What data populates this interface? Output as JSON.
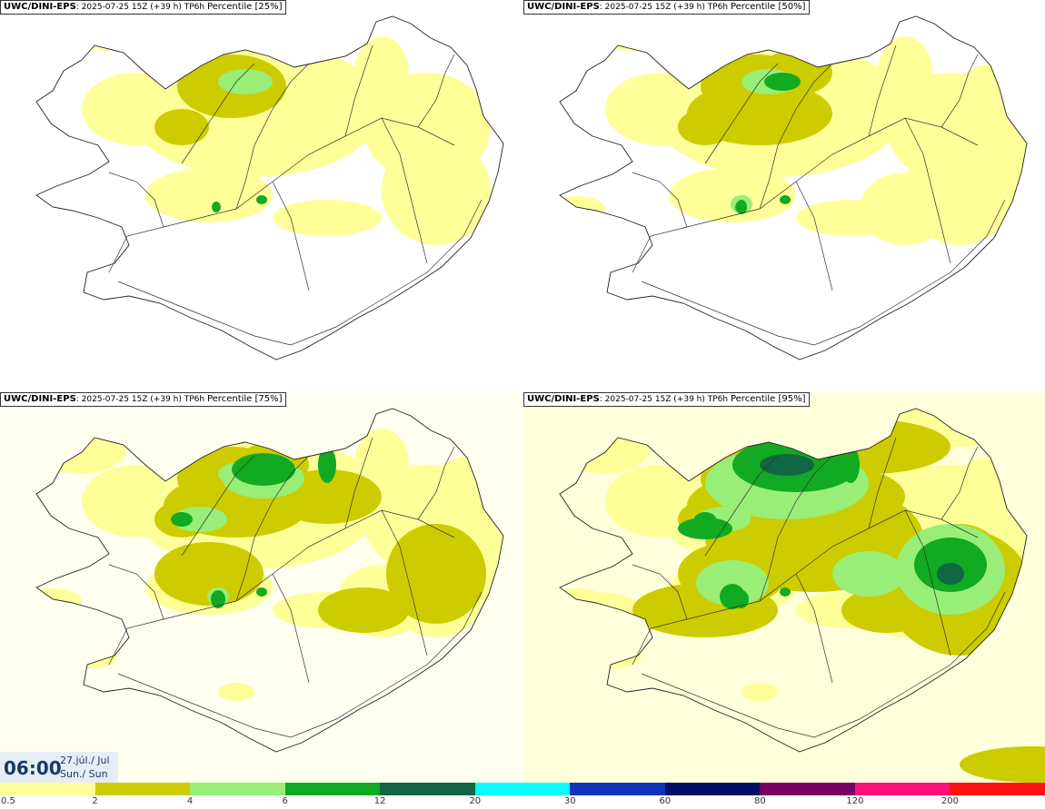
{
  "panels": [
    {
      "source": "UWC/DINI-EPS",
      "info": ": 2025-07-25 15Z (+39 h) TP6h",
      "percentile": "Percentile [25%]",
      "level": 0
    },
    {
      "source": "UWC/DINI-EPS",
      "info": ": 2025-07-25 15Z (+39 h) TP6h",
      "percentile": "Percentile [50%]",
      "level": 1
    },
    {
      "source": "UWC/DINI-EPS",
      "info": ": 2025-07-25 15Z (+39 h) TP6h",
      "percentile": "Percentile [75%]",
      "level": 2
    },
    {
      "source": "UWC/DINI-EPS",
      "info": ": 2025-07-25 15Z (+39 h) TP6h",
      "percentile": "Percentile [95%]",
      "level": 3
    }
  ],
  "time": {
    "hour": "06:00",
    "date": "27.júl./ Jul",
    "day": "Sun./ Sun"
  },
  "legend": {
    "colors": [
      "#ffff99",
      "#cccc00",
      "#99ee77",
      "#11aa22",
      "#116644",
      "#00ffff",
      "#1133bb",
      "#001166",
      "#770066",
      "#ff1177",
      "#ff1111"
    ],
    "labels": [
      "0.5",
      "2",
      "4",
      "6",
      "12",
      "20",
      "30",
      "60",
      "80",
      "120",
      "200"
    ]
  }
}
